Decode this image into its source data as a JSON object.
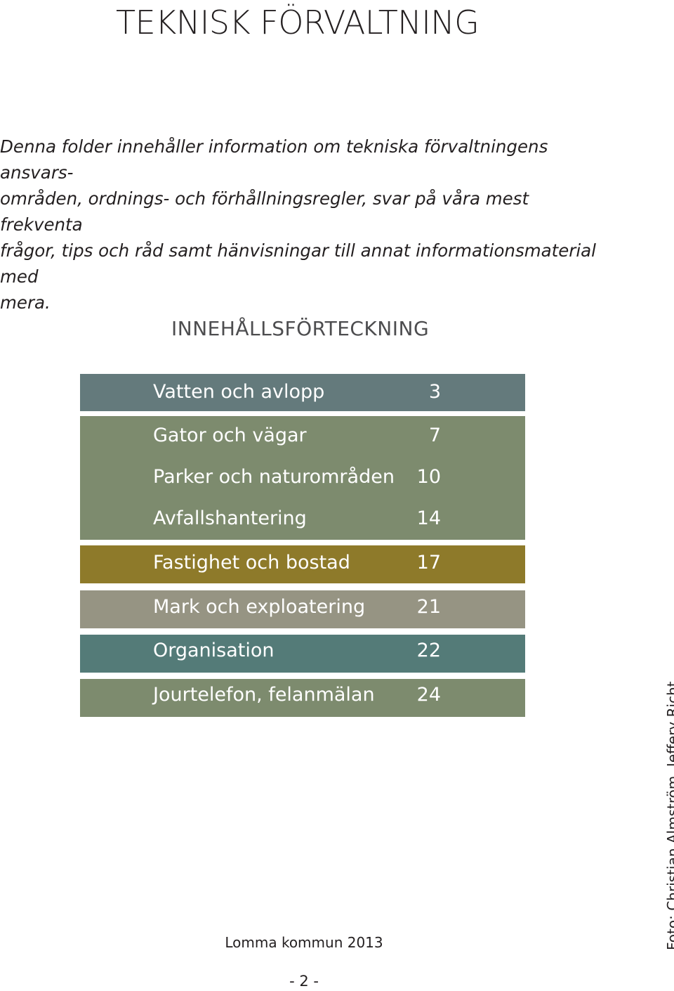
{
  "title": "TEKNISK FÖRVALTNING",
  "intro": {
    "lines": [
      "Denna folder innehåller information om tekniska förvaltningens ansvars-",
      "områden, ordnings- och förhållningsregler, svar på våra mest frekventa",
      "frågor, tips och råd samt hänvisningar till annat informationsmaterial med",
      "mera."
    ]
  },
  "toc": {
    "heading": "INNEHÅLLSFÖRTECKNING",
    "blocks": [
      {
        "color": "#647a7c",
        "items": [
          {
            "label": "Vatten och avlopp",
            "page": "3"
          }
        ]
      },
      {
        "color": "#7d8b6e",
        "items": [
          {
            "label": "Gator och vägar",
            "page": "7"
          },
          {
            "label": "Parker och naturområden",
            "page": "10"
          },
          {
            "label": "Avfallshantering",
            "page": "14"
          }
        ]
      },
      {
        "color": "#8e7a2a",
        "items": [
          {
            "label": "Fastighet och bostad",
            "page": "17"
          }
        ]
      },
      {
        "color": "#969483",
        "items": [
          {
            "label": "Mark och exploatering",
            "page": "21"
          }
        ]
      },
      {
        "color": "#547b78",
        "items": [
          {
            "label": "Organisation",
            "page": "22"
          }
        ]
      },
      {
        "color": "#7d8b6e",
        "items": [
          {
            "label": "Jourtelefon, felanmälan",
            "page": "24"
          }
        ]
      }
    ]
  },
  "footer": {
    "organization": "Lomma kommun 2013",
    "page_number": "- 2 -"
  },
  "photo_credit": "Foto: Christian Almström, Jeffery Richt"
}
